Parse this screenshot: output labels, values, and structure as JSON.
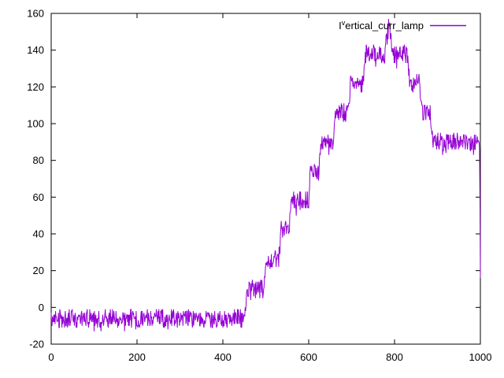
{
  "chart_data": {
    "type": "line",
    "title": "",
    "xlabel": "",
    "ylabel": "",
    "xlim": [
      0,
      1000
    ],
    "ylim": [
      -20,
      160
    ],
    "xticks": [
      "0",
      "200",
      "400",
      "600",
      "800",
      "1000"
    ],
    "xtick_values": [
      0,
      200,
      400,
      600,
      800,
      1000
    ],
    "yticks": [
      "-20",
      "0",
      "20",
      "40",
      "60",
      "80",
      "100",
      "120",
      "140",
      "160"
    ],
    "ytick_values": [
      -20,
      0,
      20,
      40,
      60,
      80,
      100,
      120,
      140,
      160
    ],
    "grid": false,
    "legend_position": "top-right-inside",
    "background_color": "#ffffff",
    "axis_color": "#000000",
    "series": [
      {
        "label_parts": {
          "prefix": "I",
          "superscript": "v",
          "rest": "ertical_curr_lamp"
        },
        "label_plain": "I^vertical_curr_lamp",
        "color": "#9400d3",
        "description": "Noisy stepped signal: flat near -6 until x~451, staircase up in steps of ~16 to peak ~154 at x~787, staircase down to ~90 plateau from x~889, final drop to ~14 at x=1000. Per-sample noise ~±5.",
        "x_step": 1,
        "noise_amplitude": 5,
        "envelope_keypoints": [
          [
            0,
            -6
          ],
          [
            451,
            -6
          ],
          [
            457,
            10
          ],
          [
            494,
            10
          ],
          [
            500,
            26
          ],
          [
            530,
            26
          ],
          [
            536,
            42
          ],
          [
            554,
            42
          ],
          [
            559,
            58
          ],
          [
            600,
            58
          ],
          [
            604,
            74
          ],
          [
            623,
            74
          ],
          [
            628,
            90
          ],
          [
            658,
            90
          ],
          [
            662,
            106
          ],
          [
            692,
            106
          ],
          [
            697,
            122
          ],
          [
            727,
            122
          ],
          [
            732,
            138
          ],
          [
            777,
            138
          ],
          [
            787,
            154
          ],
          [
            798,
            138
          ],
          [
            830,
            138
          ],
          [
            835,
            122
          ],
          [
            859,
            122
          ],
          [
            864,
            106
          ],
          [
            884,
            106
          ],
          [
            889,
            90
          ],
          [
            998,
            90
          ],
          [
            1000,
            14
          ]
        ]
      }
    ]
  }
}
